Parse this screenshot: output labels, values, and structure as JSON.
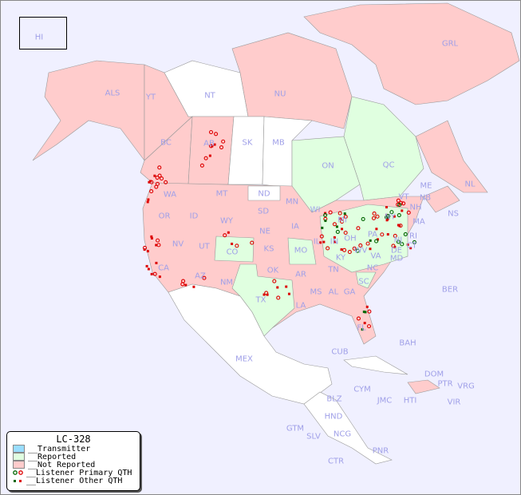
{
  "map_title": "LC-328",
  "colors": {
    "background": "#f0f0ff",
    "transmitter": "#99ddff",
    "reported": "#e0ffe0",
    "not_reported": "#ffcccc",
    "unlisted": "#ffffff",
    "primary_qth_green": "#006600",
    "primary_qth_red": "#dd0000",
    "label": "#a0a0e8"
  },
  "legend": [
    {
      "label": "__Transmitter",
      "type": "swatch",
      "color": "#99ddff"
    },
    {
      "label": "__Reported",
      "type": "swatch",
      "color": "#e0ffe0"
    },
    {
      "label": "__Not Reported",
      "type": "swatch",
      "color": "#ffcccc"
    },
    {
      "label": "__Listener Primary QTH",
      "type": "circles"
    },
    {
      "label": "__Listener Other QTH",
      "type": "squares"
    }
  ],
  "regions": [
    "HI",
    "ALS",
    "YT",
    "NT",
    "NU",
    "GRL",
    "BC",
    "AB",
    "SK",
    "MB",
    "ON",
    "QC",
    "NL",
    "NB",
    "NS",
    "WA",
    "OR",
    "CA",
    "ID",
    "NV",
    "MT",
    "WY",
    "UT",
    "AZ",
    "CO",
    "NM",
    "ND",
    "SD",
    "NE",
    "KS",
    "OK",
    "TX",
    "MN",
    "IA",
    "MO",
    "AR",
    "LA",
    "WI",
    "IL",
    "MI",
    "IN",
    "OH",
    "KY",
    "TN",
    "MS",
    "AL",
    "GA",
    "FL",
    "SC",
    "NC",
    "VA",
    "WV",
    "PA",
    "NY",
    "VT",
    "NH",
    "ME",
    "MA",
    "CT",
    "RI",
    "NJ",
    "DE",
    "MD",
    "MEX",
    "CUB",
    "BAH",
    "BER",
    "CYM",
    "JMC",
    "HTI",
    "DOM",
    "PTR",
    "VRG",
    "VIR",
    "BLZ",
    "GTM",
    "HND",
    "SLV",
    "NCG",
    "CTR",
    "PNR"
  ]
}
